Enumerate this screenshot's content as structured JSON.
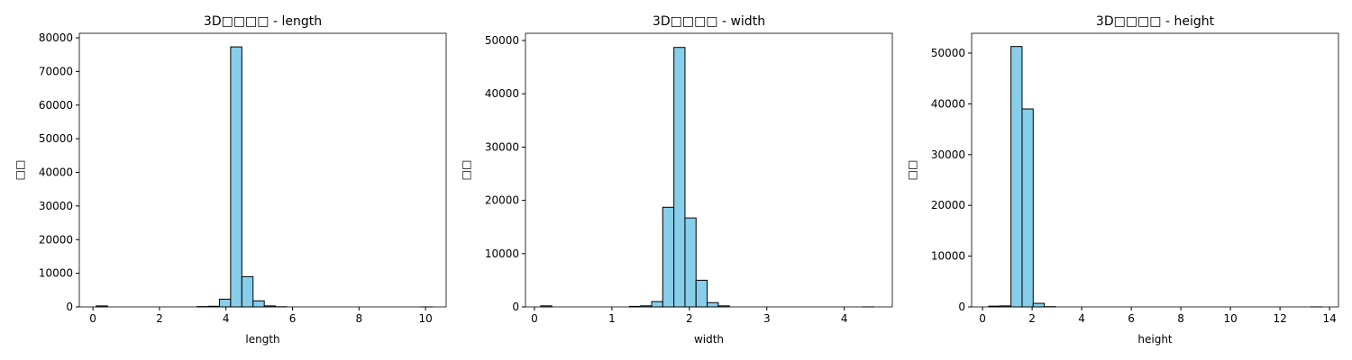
{
  "chart_data": [
    {
      "type": "histogram",
      "title": "3D□□□□ - length",
      "xlabel": "length",
      "ylabel": "□□",
      "color": "#87ceeb",
      "edgecolor": "#000000",
      "bins": [
        0.1,
        0.437,
        0.773,
        1.11,
        1.447,
        1.784,
        2.12,
        2.457,
        2.794,
        3.13,
        3.467,
        3.804,
        4.14,
        4.477,
        4.814,
        5.151,
        5.487,
        5.824,
        6.161,
        6.497,
        6.834,
        7.171,
        7.507,
        7.844,
        8.181,
        8.518,
        8.854,
        9.191,
        9.528,
        9.864,
        10.201
      ],
      "values": [
        300,
        0,
        0,
        0,
        0,
        0,
        0,
        0,
        0,
        100,
        200,
        2300,
        77300,
        9000,
        1800,
        300,
        50,
        0,
        0,
        0,
        0,
        0,
        0,
        0,
        0,
        0,
        0,
        0,
        0,
        10
      ],
      "xlim": [
        -0.41,
        10.62
      ],
      "ylim": [
        0,
        81340
      ],
      "xticks": [
        0,
        2,
        4,
        6,
        8,
        10
      ],
      "yticks": [
        0,
        10000,
        20000,
        30000,
        40000,
        50000,
        60000,
        70000,
        80000
      ]
    },
    {
      "type": "histogram",
      "title": "3D□□□□ - width",
      "xlabel": "width",
      "ylabel": "□□",
      "color": "#87ceeb",
      "edgecolor": "#000000",
      "bins": [
        0.08,
        0.223,
        0.367,
        0.51,
        0.653,
        0.797,
        0.94,
        1.083,
        1.226,
        1.37,
        1.513,
        1.656,
        1.8,
        1.943,
        2.086,
        2.23,
        2.373,
        2.516,
        2.659,
        2.803,
        2.946,
        3.089,
        3.233,
        3.376,
        3.519,
        3.662,
        3.806,
        3.949,
        4.092,
        4.236,
        4.379
      ],
      "values": [
        200,
        0,
        0,
        0,
        0,
        0,
        0,
        0,
        100,
        200,
        1000,
        18700,
        48700,
        16700,
        5000,
        800,
        200,
        0,
        0,
        0,
        0,
        0,
        0,
        0,
        0,
        0,
        0,
        0,
        0,
        10
      ],
      "xlim": [
        -0.116,
        4.62
      ],
      "ylim": [
        0,
        51350
      ],
      "xticks": [
        0,
        1,
        2,
        3,
        4
      ],
      "yticks": [
        0,
        10000,
        20000,
        30000,
        40000,
        50000
      ]
    },
    {
      "type": "histogram",
      "title": "3D□□□□ - height",
      "xlabel": "height",
      "ylabel": "□□",
      "color": "#87ceeb",
      "edgecolor": "#000000",
      "bins": [
        0.25,
        0.698,
        1.147,
        1.595,
        2.043,
        2.492,
        2.94,
        3.388,
        3.837,
        4.285,
        4.733,
        5.181,
        5.63,
        6.078,
        6.526,
        6.975,
        7.423,
        7.871,
        8.32,
        8.768,
        9.216,
        9.665,
        10.113,
        10.561,
        11.01,
        11.458,
        11.906,
        12.355,
        12.803,
        13.251,
        13.7
      ],
      "values": [
        150,
        200,
        51300,
        39000,
        700,
        50,
        0,
        0,
        0,
        0,
        0,
        0,
        0,
        0,
        0,
        0,
        0,
        0,
        0,
        0,
        0,
        0,
        0,
        0,
        0,
        0,
        0,
        0,
        0,
        10
      ],
      "xlim": [
        -0.44,
        14.36
      ],
      "ylim": [
        0,
        53900
      ],
      "xticks": [
        0,
        2,
        4,
        6,
        8,
        10,
        12,
        14
      ],
      "yticks": [
        0,
        10000,
        20000,
        30000,
        40000,
        50000
      ]
    }
  ]
}
